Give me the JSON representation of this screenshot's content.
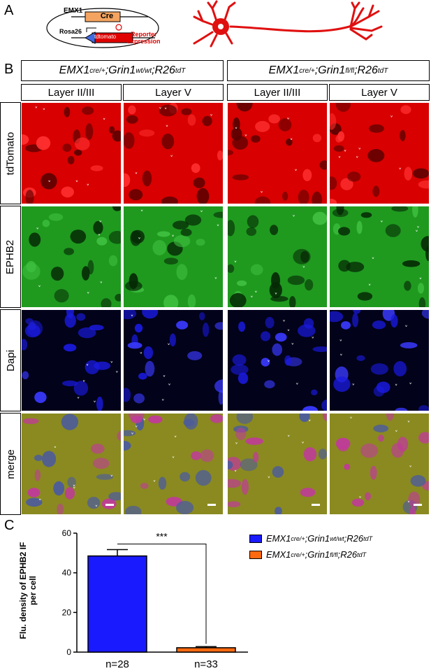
{
  "panels": {
    "a": "A",
    "b": "B",
    "c": "C"
  },
  "schematic": {
    "emx1": "EMX1",
    "cre": "Cre",
    "rosa26": "Rosa26",
    "tdtomato": "tdtomato",
    "reporter_line1": "Reporter",
    "reporter_line2": "expression",
    "colors": {
      "cre": "#f4a460",
      "tdtomato": "#e00000",
      "arrow": "#4169e1",
      "neuron": "#e01010"
    }
  },
  "genotypes": {
    "left": {
      "base": "EMX1",
      "sup1": "cre/+",
      "mid": ";Grin1",
      "sup2": "wt/wt",
      "mid2": ";R26",
      "sup3": "tdT"
    },
    "right": {
      "base": "EMX1",
      "sup1": "cre/+",
      "mid": ";Grin1",
      "sup2": "fl/fl",
      "mid2": ";R26",
      "sup3": "tdT"
    }
  },
  "layers": [
    "Layer II/III",
    "Layer V",
    "Layer II/III",
    "Layer V"
  ],
  "rows": [
    {
      "label": "tdTomato",
      "color": "#e00000"
    },
    {
      "label": "EPHB2",
      "color": "#1aa01a"
    },
    {
      "label": "Dapi",
      "color": "#0000e0"
    },
    {
      "label": "merge",
      "color": "#9a8a30"
    }
  ],
  "chart_data": {
    "type": "bar",
    "categories": [
      "n=28",
      "n=33"
    ],
    "values": [
      48.5,
      2.2
    ],
    "errors": [
      3.2,
      0.6
    ],
    "ylabel_line1": "Flu. density of EPHB2 IF",
    "ylabel_line2": "per cell",
    "ylim": [
      0,
      60
    ],
    "yticks": [
      "0",
      "20",
      "40",
      "60"
    ],
    "significance": "***",
    "colors": [
      "#1a1aff",
      "#ff6a10"
    ],
    "legend": [
      {
        "base": "EMX1",
        "sup1": "cre/+",
        "mid": ";Grin1",
        "sup2": "wt/wt",
        "mid2": ";R26",
        "sup3": "tdT"
      },
      {
        "base": "EMX1",
        "sup1": "cre/+",
        "mid": ";Grin1",
        "sup2": "fl/fl",
        "mid2": ";R26",
        "sup3": "tdT"
      }
    ]
  }
}
